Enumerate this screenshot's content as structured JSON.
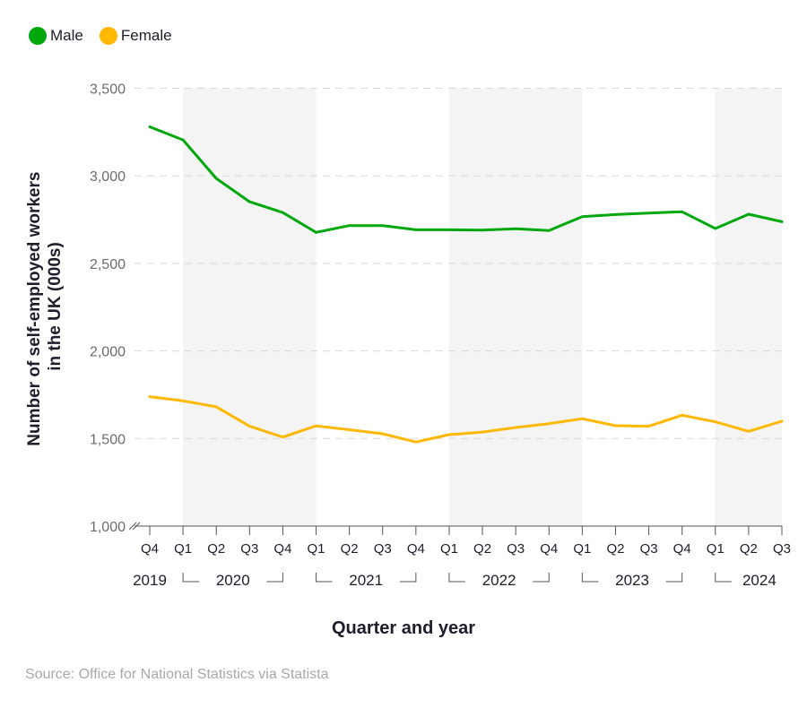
{
  "chart_data": {
    "type": "line",
    "title": "",
    "xlabel": "Quarter and year",
    "ylabel_lines": [
      "Number of self-employed workers",
      "in the UK (000s)"
    ],
    "ylabel": "Number of self-employed workers in the UK (000s)",
    "ylim": [
      1000,
      3500
    ],
    "yticks": [
      1000,
      1500,
      2000,
      2500,
      3000,
      3500
    ],
    "ytick_labels": [
      "1,000",
      "1,500",
      "2,000",
      "2,500",
      "3,000",
      "3,500"
    ],
    "grid": "horizontal-dashed",
    "axis_break": true,
    "legend_position": "top-left",
    "x": [
      "Q4 2019",
      "Q1 2020",
      "Q2 2020",
      "Q3 2020",
      "Q4 2020",
      "Q1 2021",
      "Q2 2021",
      "Q3 2021",
      "Q4 2021",
      "Q1 2022",
      "Q2 2022",
      "Q3 2022",
      "Q4 2022",
      "Q1 2023",
      "Q2 2023",
      "Q3 2023",
      "Q4 2023",
      "Q1 2024",
      "Q2 2024",
      "Q3 2024"
    ],
    "quarter_labels": [
      "Q4",
      "Q1",
      "Q2",
      "Q3",
      "Q4",
      "Q1",
      "Q2",
      "Q3",
      "Q4",
      "Q1",
      "Q2",
      "Q3",
      "Q4",
      "Q1",
      "Q2",
      "Q3",
      "Q4",
      "Q1",
      "Q2",
      "Q3"
    ],
    "year_groups": [
      {
        "label": "2019",
        "start": 0,
        "end": 0,
        "shaded": false
      },
      {
        "label": "2020",
        "start": 1,
        "end": 4,
        "shaded": true
      },
      {
        "label": "2021",
        "start": 5,
        "end": 8,
        "shaded": false
      },
      {
        "label": "2022",
        "start": 9,
        "end": 12,
        "shaded": true
      },
      {
        "label": "2023",
        "start": 13,
        "end": 16,
        "shaded": false
      },
      {
        "label": "2024",
        "start": 17,
        "end": 19,
        "shaded": true
      }
    ],
    "series": [
      {
        "name": "Male",
        "color": "#00a80e",
        "values": [
          3280,
          3205,
          2985,
          2852,
          2790,
          2677,
          2716,
          2716,
          2692,
          2692,
          2690,
          2698,
          2688,
          2767,
          2779,
          2787,
          2795,
          2699,
          2781,
          2738
        ]
      },
      {
        "name": "Female",
        "color": "#ffb800",
        "values": [
          1739,
          1715,
          1681,
          1570,
          1508,
          1572,
          1550,
          1527,
          1480,
          1522,
          1537,
          1563,
          1585,
          1613,
          1573,
          1570,
          1633,
          1595,
          1541,
          1599
        ]
      }
    ]
  },
  "legend": {
    "items": [
      {
        "label": "Male",
        "color": "#00a80e"
      },
      {
        "label": "Female",
        "color": "#ffb800"
      }
    ]
  },
  "footer": {
    "source": "Source: Office for National Statistics via Statista"
  }
}
